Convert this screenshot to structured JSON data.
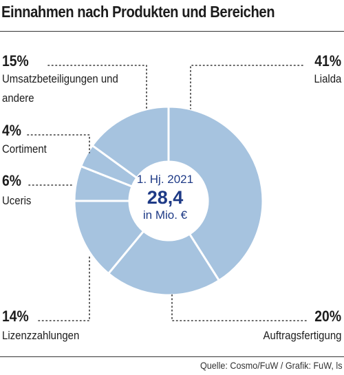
{
  "title": "Einnahmen nach Produkten und Bereichen",
  "center": {
    "line1": "1. Hj. 2021",
    "value": "28,4",
    "unit": "in Mio. €"
  },
  "source": "Quelle: Cosmo/FuW / Grafik: FuW, ls",
  "colors": {
    "slice": "#a6c3df",
    "center_text": "#1e3a86",
    "leader": "#333333"
  },
  "chart_data": {
    "type": "pie",
    "variant": "donut",
    "total_label": "28,4",
    "slices": [
      {
        "name": "Lialda",
        "value": 41,
        "label": "41%"
      },
      {
        "name": "Auftragsfertigung",
        "value": 20,
        "label": "20%"
      },
      {
        "name": "Lizenzzahlungen",
        "value": 14,
        "label": "14%"
      },
      {
        "name": "Uceris",
        "value": 6,
        "label": "6%"
      },
      {
        "name": "Cortiment",
        "value": 4,
        "label": "4%"
      },
      {
        "name": "Umsatzbeteiligungen und andere",
        "value": 15,
        "label": "15%"
      }
    ]
  },
  "labels": {
    "l15_pct": "15%",
    "l15_name1": "Umsatzbeteiligungen und",
    "l15_name2": "andere",
    "l4_pct": "4%",
    "l4_name": "Cortiment",
    "l6_pct": "6%",
    "l6_name": "Uceris",
    "l14_pct": "14%",
    "l14_name": "Lizenzzahlungen",
    "l41_pct": "41%",
    "l41_name": "Lialda",
    "l20_pct": "20%",
    "l20_name": "Auftragsfertigung"
  }
}
